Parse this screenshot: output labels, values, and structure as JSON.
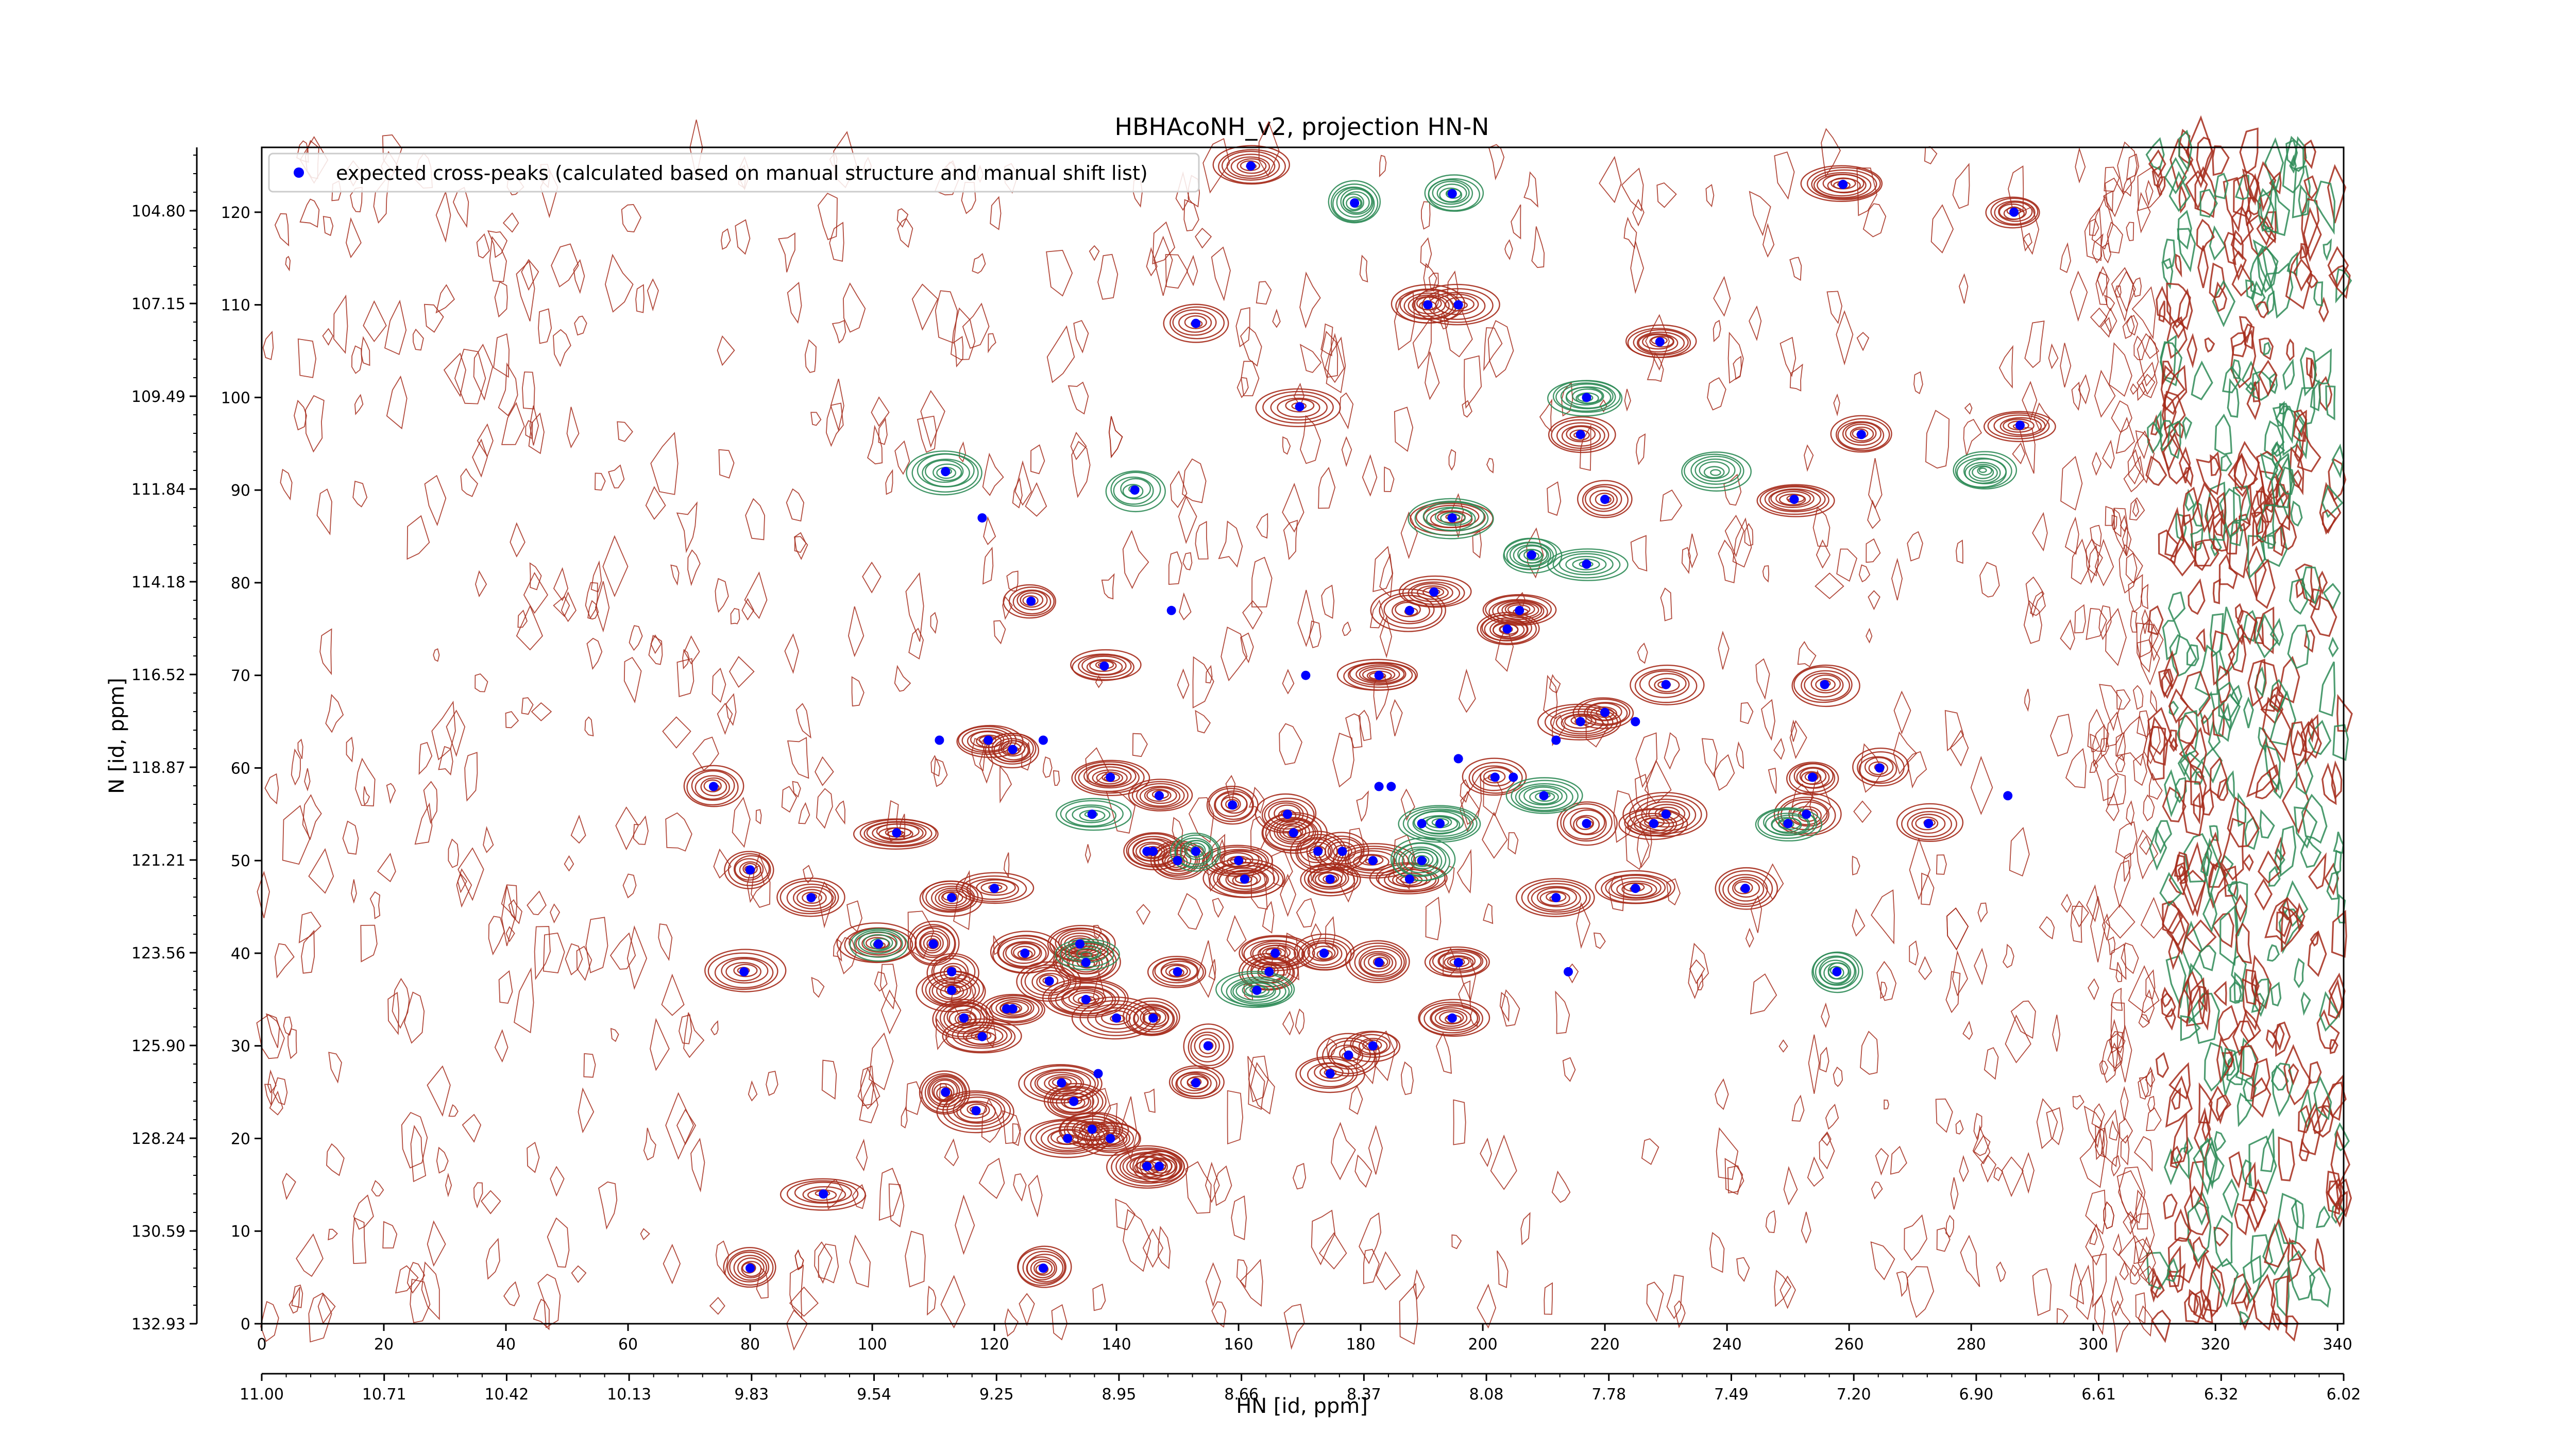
{
  "chart_data": {
    "type": "scatter",
    "title": "HBHAcoNH_v2, projection HN-N",
    "xlabel": "HN [id, ppm]",
    "ylabel": "N [id, ppm]",
    "x_index_range": [
      0,
      341
    ],
    "y_index_range": [
      0,
      127
    ],
    "x_index_ticks": [
      "0",
      "20",
      "40",
      "60",
      "80",
      "100",
      "120",
      "140",
      "160",
      "180",
      "200",
      "220",
      "240",
      "260",
      "280",
      "300",
      "320",
      "340"
    ],
    "x_ppm_ticks": [
      "11.00",
      "10.71",
      "10.42",
      "10.13",
      "9.83",
      "9.54",
      "9.25",
      "8.95",
      "8.66",
      "8.37",
      "8.08",
      "7.78",
      "7.49",
      "7.20",
      "6.90",
      "6.61",
      "6.32",
      "6.02"
    ],
    "y_index_ticks": [
      "0",
      "10",
      "20",
      "30",
      "40",
      "50",
      "60",
      "70",
      "80",
      "90",
      "100",
      "110",
      "120"
    ],
    "y_ppm_ticks": [
      "132.93",
      "130.59",
      "128.24",
      "125.90",
      "123.56",
      "121.21",
      "118.87",
      "116.52",
      "114.18",
      "111.84",
      "109.49",
      "107.15",
      "104.80"
    ],
    "legend": {
      "position": "top-left",
      "entries": [
        {
          "label": "expected cross-peaks (calculated based on manual structure and manual shift list)",
          "color": "#0000ff",
          "marker": "filled-circle"
        }
      ]
    },
    "contour_colors": {
      "positive": "#a52a1a",
      "negative": "#2e8b57"
    },
    "series": [
      {
        "name": "expected cross-peaks (calculated based on manual structure and manual shift list)",
        "color": "#0000ff",
        "points": [
          [
            162,
            125
          ],
          [
            259,
            123
          ],
          [
            179,
            121
          ],
          [
            195,
            122
          ],
          [
            287,
            120
          ],
          [
            191,
            110
          ],
          [
            196,
            110
          ],
          [
            153,
            108
          ],
          [
            229,
            106
          ],
          [
            170,
            99
          ],
          [
            217,
            100
          ],
          [
            262,
            96
          ],
          [
            216,
            96
          ],
          [
            288,
            97
          ],
          [
            112,
            92
          ],
          [
            143,
            90
          ],
          [
            220,
            89
          ],
          [
            251,
            89
          ],
          [
            118,
            87
          ],
          [
            195,
            87
          ],
          [
            208,
            83
          ],
          [
            217,
            82
          ],
          [
            126,
            78
          ],
          [
            192,
            79
          ],
          [
            149,
            77
          ],
          [
            206,
            77
          ],
          [
            204,
            75
          ],
          [
            188,
            77
          ],
          [
            138,
            71
          ],
          [
            171,
            70
          ],
          [
            183,
            70
          ],
          [
            230,
            69
          ],
          [
            256,
            69
          ],
          [
            220,
            66
          ],
          [
            216,
            65
          ],
          [
            225,
            65
          ],
          [
            212,
            63
          ],
          [
            119,
            63
          ],
          [
            111,
            63
          ],
          [
            123,
            62
          ],
          [
            128,
            63
          ],
          [
            196,
            61
          ],
          [
            265,
            60
          ],
          [
            254,
            59
          ],
          [
            202,
            59
          ],
          [
            205,
            59
          ],
          [
            74,
            58
          ],
          [
            139,
            59
          ],
          [
            147,
            57
          ],
          [
            185,
            58
          ],
          [
            183,
            58
          ],
          [
            210,
            57
          ],
          [
            286,
            57
          ],
          [
            159,
            56
          ],
          [
            253,
            55
          ],
          [
            230,
            55
          ],
          [
            168,
            55
          ],
          [
            136,
            55
          ],
          [
            193,
            54
          ],
          [
            250,
            54
          ],
          [
            217,
            54
          ],
          [
            273,
            54
          ],
          [
            190,
            54
          ],
          [
            228,
            54
          ],
          [
            104,
            53
          ],
          [
            169,
            53
          ],
          [
            153,
            51
          ],
          [
            146,
            51
          ],
          [
            177,
            51
          ],
          [
            145,
            51
          ],
          [
            182,
            50
          ],
          [
            173,
            51
          ],
          [
            160,
            50
          ],
          [
            150,
            50
          ],
          [
            190,
            50
          ],
          [
            80,
            49
          ],
          [
            175,
            48
          ],
          [
            161,
            48
          ],
          [
            188,
            48
          ],
          [
            225,
            47
          ],
          [
            243,
            47
          ],
          [
            120,
            47
          ],
          [
            113,
            46
          ],
          [
            90,
            46
          ],
          [
            212,
            46
          ],
          [
            101,
            41
          ],
          [
            134,
            41
          ],
          [
            110,
            41
          ],
          [
            125,
            40
          ],
          [
            166,
            40
          ],
          [
            174,
            40
          ],
          [
            150,
            38
          ],
          [
            135,
            39
          ],
          [
            196,
            39
          ],
          [
            183,
            39
          ],
          [
            165,
            38
          ],
          [
            113,
            38
          ],
          [
            79,
            38
          ],
          [
            214,
            38
          ],
          [
            258,
            38
          ],
          [
            129,
            37
          ],
          [
            113,
            36
          ],
          [
            163,
            36
          ],
          [
            135,
            35
          ],
          [
            123,
            34
          ],
          [
            122,
            34
          ],
          [
            115,
            33
          ],
          [
            140,
            33
          ],
          [
            146,
            33
          ],
          [
            195,
            33
          ],
          [
            155,
            30
          ],
          [
            182,
            30
          ],
          [
            118,
            31
          ],
          [
            178,
            29
          ],
          [
            175,
            27
          ],
          [
            137,
            27
          ],
          [
            153,
            26
          ],
          [
            131,
            26
          ],
          [
            112,
            25
          ],
          [
            133,
            24
          ],
          [
            117,
            23
          ],
          [
            136,
            21
          ],
          [
            132,
            20
          ],
          [
            139,
            20
          ],
          [
            145,
            17
          ],
          [
            147,
            17
          ],
          [
            92,
            14
          ],
          [
            80,
            6
          ],
          [
            128,
            6
          ]
        ]
      }
    ],
    "peak_clusters": [
      {
        "sign": "positive",
        "points": [
          [
            162,
            125
          ],
          [
            259,
            123
          ],
          [
            191,
            110
          ],
          [
            196,
            110
          ],
          [
            153,
            108
          ],
          [
            229,
            106
          ],
          [
            170,
            99
          ],
          [
            262,
            96
          ],
          [
            216,
            96
          ],
          [
            288,
            97
          ],
          [
            220,
            89
          ],
          [
            195,
            87
          ],
          [
            126,
            78
          ],
          [
            192,
            79
          ],
          [
            206,
            77
          ],
          [
            204,
            75
          ],
          [
            138,
            71
          ],
          [
            183,
            70
          ],
          [
            230,
            69
          ],
          [
            256,
            69
          ],
          [
            220,
            66
          ],
          [
            216,
            65
          ],
          [
            119,
            63
          ],
          [
            123,
            62
          ],
          [
            265,
            60
          ],
          [
            254,
            59
          ],
          [
            202,
            59
          ],
          [
            74,
            58
          ],
          [
            139,
            59
          ],
          [
            147,
            57
          ],
          [
            159,
            56
          ],
          [
            253,
            55
          ],
          [
            230,
            55
          ],
          [
            168,
            55
          ],
          [
            217,
            54
          ],
          [
            273,
            54
          ],
          [
            228,
            54
          ],
          [
            104,
            53
          ],
          [
            169,
            53
          ],
          [
            146,
            51
          ],
          [
            177,
            51
          ],
          [
            182,
            50
          ],
          [
            173,
            51
          ],
          [
            160,
            50
          ],
          [
            150,
            50
          ],
          [
            80,
            49
          ],
          [
            175,
            48
          ],
          [
            161,
            48
          ],
          [
            188,
            48
          ],
          [
            225,
            47
          ],
          [
            243,
            47
          ],
          [
            120,
            47
          ],
          [
            113,
            46
          ],
          [
            90,
            46
          ],
          [
            212,
            46
          ],
          [
            101,
            41
          ],
          [
            134,
            41
          ],
          [
            110,
            41
          ],
          [
            125,
            40
          ],
          [
            166,
            40
          ],
          [
            174,
            40
          ],
          [
            150,
            38
          ],
          [
            135,
            39
          ],
          [
            196,
            39
          ],
          [
            183,
            39
          ],
          [
            165,
            38
          ],
          [
            113,
            38
          ],
          [
            79,
            38
          ],
          [
            129,
            37
          ],
          [
            113,
            36
          ],
          [
            135,
            35
          ],
          [
            123,
            34
          ],
          [
            115,
            33
          ],
          [
            140,
            33
          ],
          [
            146,
            33
          ],
          [
            195,
            33
          ],
          [
            155,
            30
          ],
          [
            182,
            30
          ],
          [
            118,
            31
          ],
          [
            178,
            29
          ],
          [
            175,
            27
          ],
          [
            153,
            26
          ],
          [
            131,
            26
          ],
          [
            112,
            25
          ],
          [
            133,
            24
          ],
          [
            117,
            23
          ],
          [
            136,
            21
          ],
          [
            132,
            20
          ],
          [
            139,
            20
          ],
          [
            145,
            17
          ],
          [
            147,
            17
          ],
          [
            92,
            14
          ],
          [
            80,
            6
          ],
          [
            128,
            6
          ],
          [
            287,
            120
          ],
          [
            251,
            89
          ],
          [
            188,
            77
          ]
        ]
      },
      {
        "sign": "negative",
        "points": [
          [
            179,
            121
          ],
          [
            217,
            100
          ],
          [
            112,
            92
          ],
          [
            143,
            90
          ],
          [
            208,
            83
          ],
          [
            217,
            82
          ],
          [
            193,
            54
          ],
          [
            190,
            50
          ],
          [
            250,
            54
          ],
          [
            153,
            51
          ],
          [
            101,
            41
          ],
          [
            135,
            40
          ],
          [
            258,
            38
          ],
          [
            163,
            36
          ],
          [
            195,
            122
          ],
          [
            210,
            57
          ],
          [
            136,
            55
          ],
          [
            195,
            87
          ],
          [
            282,
            92
          ],
          [
            238,
            92
          ]
        ]
      }
    ]
  }
}
